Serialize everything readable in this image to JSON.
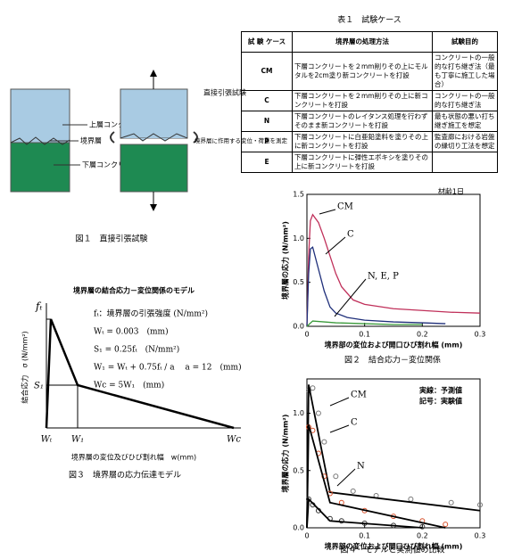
{
  "table1": {
    "title": "表１　試験ケース",
    "header": [
      "試 験 ケース",
      "境界層の処理方法",
      "試験目的"
    ],
    "rows": [
      [
        "CM",
        "下層コンクリートを２mm削りその上にモルタルを2cm塗り新コンクリートを打設",
        "コンクリートの一般的な打ち継ぎ法（最も丁寧に施工した場合）"
      ],
      [
        "C",
        "下層コンクリートを２mm削りその上に新コンクリートを打設",
        "コンクリートの一般的な打ち継ぎ法"
      ],
      [
        "N",
        "下層コンクリートのレイタンス処理を行わずそのまま新コンクリートを打設",
        "最も状態の悪い打ち継ぎ施工を想定"
      ],
      [
        "P",
        "下層コンクリートに白亜鉛塗料を塗りその上に新コンクリートを打設",
        "監査廊における岩盤の縁切り工法を想定"
      ],
      [
        "E",
        "下層コンクリートに弾性エポキシを塗りその上に新コンクリートを打設",
        ""
      ]
    ]
  },
  "figure1": {
    "upper": "上層コンクリート",
    "layer": "境界層",
    "lower": "下層コンクリート",
    "test": "直接引張試験",
    "measure": "境界層に作用する変位・荷重を測定",
    "caption": "図１　直接引張試験"
  },
  "figure2": {
    "annotation": "材齢1日",
    "ylabel": "境界層の応力 (N/mm²)",
    "xlabel": "境界部の変位および開口ひび割れ幅 (mm)",
    "caption": "図２　結合応力－変位関係",
    "xlim": [
      0,
      0.3
    ],
    "ylim": [
      0,
      1.5
    ],
    "xticks": [
      0,
      0.1,
      0.2,
      0.3
    ],
    "yticks": [
      {
        "value": 0,
        "label": "0.0"
      },
      0.5,
      {
        "value": 1,
        "label": "1.0"
      },
      1.5
    ],
    "series": [
      {
        "name": "CM",
        "color": "#c0305a",
        "x": [
          0,
          0.003,
          0.006,
          0.01,
          0.02,
          0.03,
          0.04,
          0.05,
          0.06,
          0.08,
          0.1,
          0.15,
          0.2,
          0.25,
          0.3
        ],
        "values": [
          0,
          0.8,
          1.2,
          1.27,
          1.18,
          1.0,
          0.8,
          0.6,
          0.45,
          0.3,
          0.25,
          0.2,
          0.18,
          0.16,
          0.15
        ]
      },
      {
        "name": "C",
        "color": "#1f2f7a",
        "x": [
          0,
          0.003,
          0.006,
          0.01,
          0.02,
          0.03,
          0.04,
          0.05,
          0.07,
          0.1,
          0.15,
          0.2,
          0.24
        ],
        "values": [
          0,
          0.6,
          0.88,
          0.9,
          0.65,
          0.4,
          0.22,
          0.15,
          0.1,
          0.07,
          0.05,
          0.04,
          0.03
        ]
      },
      {
        "name": "N, E, P",
        "color": "#3a9a3a",
        "x": [
          0,
          0.01,
          0.05,
          0.1,
          0.15,
          0.2
        ],
        "values": [
          0,
          0.06,
          0.04,
          0.03,
          0.02,
          0.02
        ]
      }
    ]
  },
  "figure3": {
    "title": "境界層の結合応力－変位関係のモデル",
    "ylabel": "結合応力　σ (N/mm²)",
    "xlabel": "境界層の変位及びひび割れ幅　w(mm)",
    "caption": "図３　境界層の応力伝達モデル",
    "formulas": [
      "fₜ：境界層の引張強度 (N/mm²)",
      "Wₜ = 0.003　(mm)",
      "S₁ = 0.25fₜ　(N/mm²)",
      "W₁ = Wₜ + 0.75fₜ / a　 a = 12　(mm)",
      "Wc = 5W₁　(mm)"
    ],
    "ft": "fₜ",
    "s1": "S₁",
    "wt": "Wₜ",
    "w1": "W₁",
    "wc": "Wc"
  },
  "figure4": {
    "annotations": [
      "実線：予測値",
      "記号：実験値"
    ],
    "ylabel": "境界層の応力 (N/mm²)",
    "xlabel": "境界部の変位および開口ひび割れ幅 (mm)",
    "caption": "図４　モデルと実測値の比較",
    "xlim": [
      0,
      0.3
    ],
    "ylim": [
      0,
      1.3
    ],
    "xticks": [
      0,
      0.1,
      0.2,
      0.3
    ],
    "yticks": [
      {
        "value": 0,
        "label": "0.0"
      },
      0.5,
      {
        "value": 1,
        "label": "1.0"
      }
    ],
    "series": [
      {
        "name": "CM",
        "color": "#777777",
        "x": [
          0.003,
          0.01,
          0.02,
          0.03,
          0.05,
          0.08,
          0.12,
          0.18,
          0.25,
          0.3
        ],
        "values": [
          1.2,
          1.22,
          1.0,
          0.75,
          0.45,
          0.32,
          0.28,
          0.25,
          0.22,
          0.2
        ],
        "model_x": [
          0,
          0.003,
          0.04,
          0.3
        ],
        "model_values": [
          0,
          1.25,
          0.31,
          0.15
        ]
      },
      {
        "name": "C",
        "color": "#d8502a",
        "x": [
          0.003,
          0.01,
          0.02,
          0.03,
          0.04,
          0.06,
          0.1,
          0.15,
          0.2,
          0.24
        ],
        "values": [
          0.88,
          0.85,
          0.65,
          0.45,
          0.3,
          0.22,
          0.15,
          0.1,
          0.06,
          0.03
        ],
        "model_x": [
          0,
          0.003,
          0.04,
          0.24
        ],
        "model_values": [
          0,
          0.9,
          0.22,
          0
        ]
      },
      {
        "name": "N",
        "color": "#333333",
        "x": [
          0.003,
          0.01,
          0.02,
          0.04,
          0.06,
          0.1,
          0.15,
          0.2
        ],
        "values": [
          0.25,
          0.2,
          0.15,
          0.08,
          0.06,
          0.04,
          0.02,
          0.01
        ],
        "model_x": [
          0,
          0.003,
          0.04,
          0.2
        ],
        "model_values": [
          0,
          0.25,
          0.06,
          0
        ]
      }
    ]
  }
}
